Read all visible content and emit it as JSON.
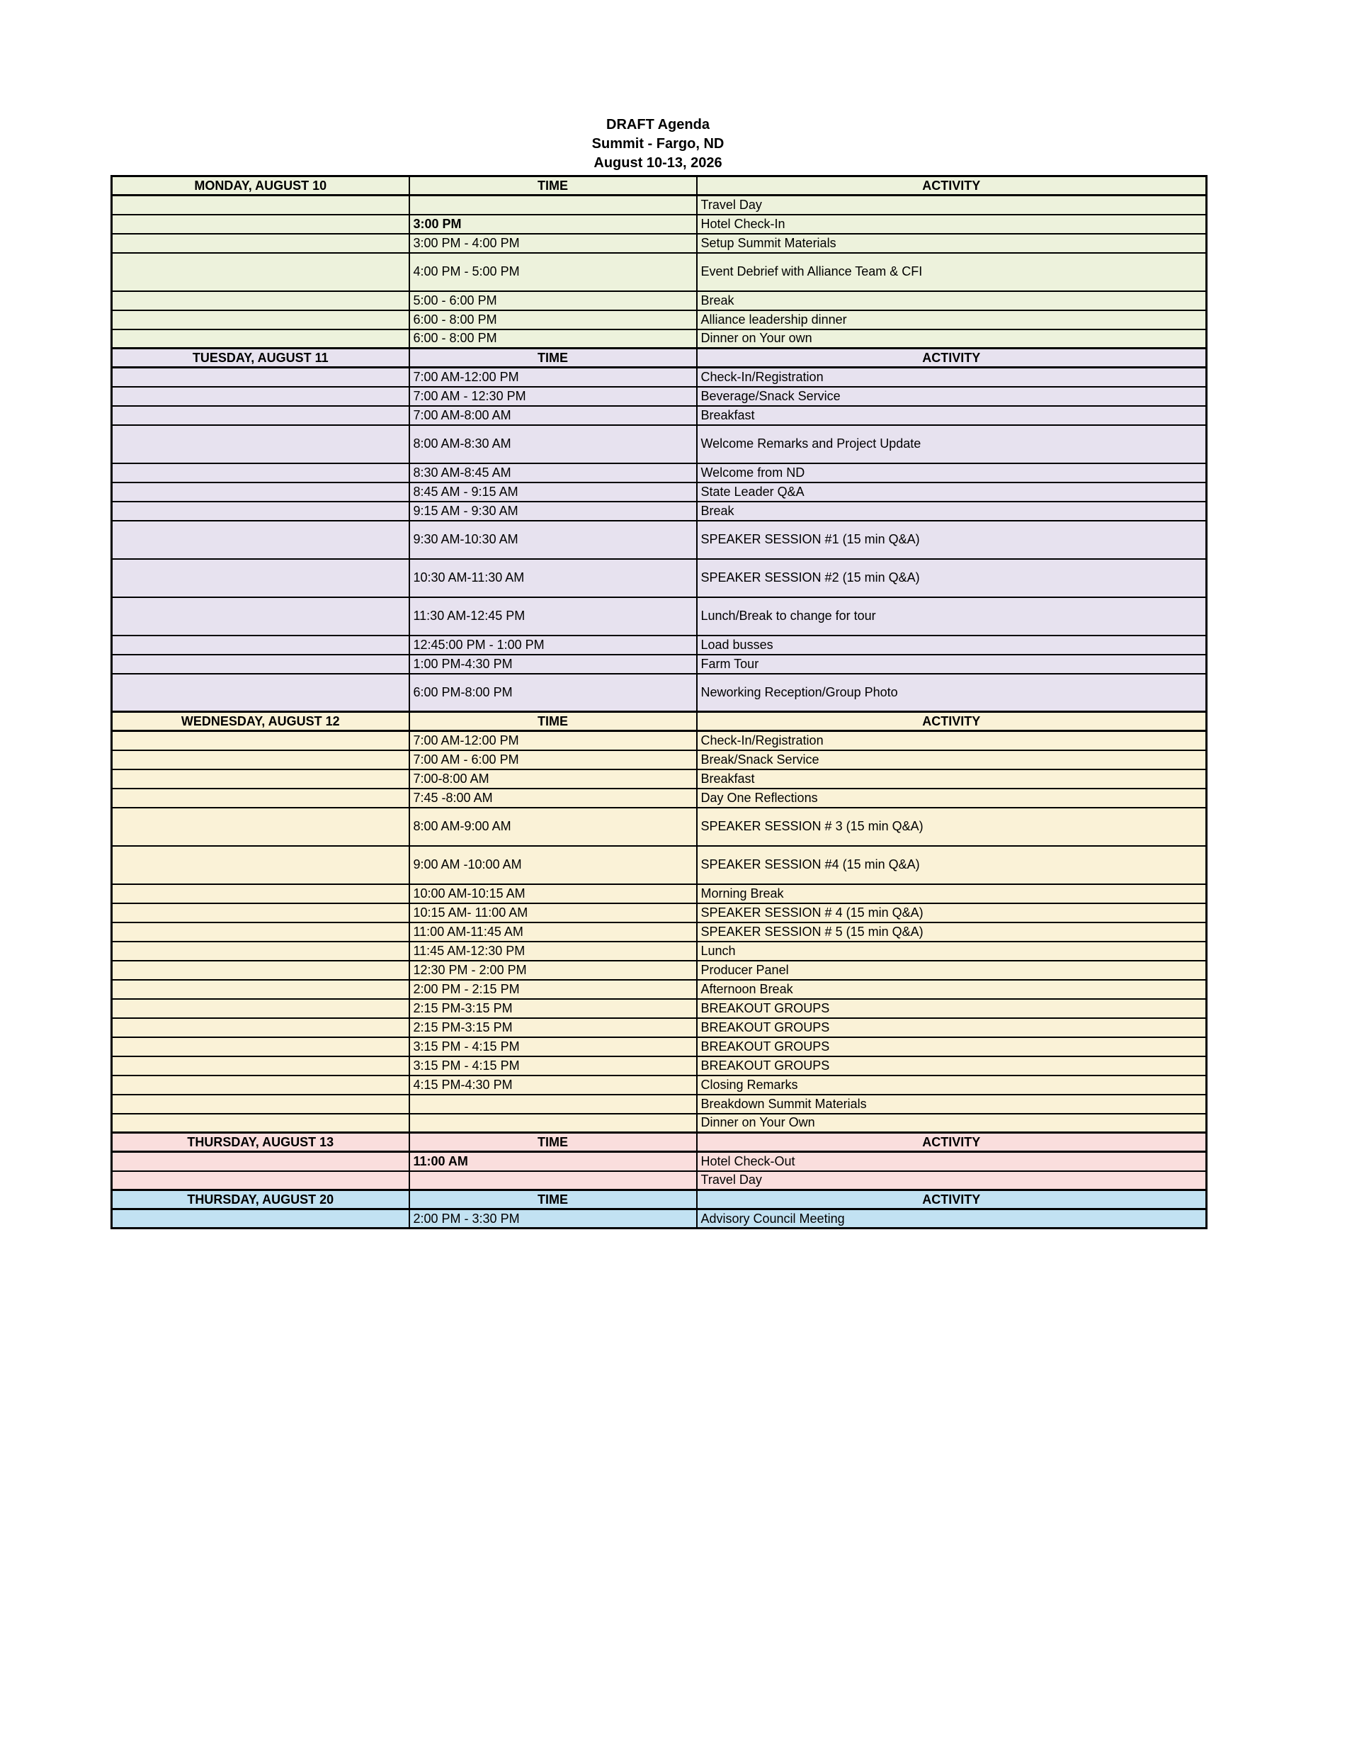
{
  "title": {
    "line1": "DRAFT Agenda",
    "line2": "Summit - Fargo, ND",
    "line3": "August 10-13, 2026"
  },
  "columns": {
    "time": "TIME",
    "activity": "ACTIVITY"
  },
  "section_colors": {
    "monday": "#edf2dc",
    "tuesday": "#e7e2ef",
    "wednesday": "#faf2d7",
    "thursday13": "#fadedd",
    "thursday20": "#c2e2f2"
  },
  "sections": [
    {
      "day": "MONDAY, AUGUST 10",
      "color": "#edf2dc",
      "rows": [
        {
          "time": "",
          "activity": "Travel Day"
        },
        {
          "time": "3:00 PM",
          "time_bold": true,
          "activity": "Hotel Check-In"
        },
        {
          "time": "3:00 PM - 4:00 PM",
          "activity": "Setup Summit Materials"
        },
        {
          "time": "4:00 PM - 5:00 PM",
          "activity": "Event Debrief with Alliance Team & CFI",
          "tall": true
        },
        {
          "time": "5:00 - 6:00 PM",
          "activity": "Break"
        },
        {
          "time": "6:00 - 8:00 PM",
          "activity": "Alliance leadership dinner"
        },
        {
          "time": "6:00 - 8:00 PM",
          "activity": "Dinner on Your own"
        }
      ]
    },
    {
      "day": "TUESDAY, AUGUST 11",
      "color": "#e7e2ef",
      "rows": [
        {
          "time": "7:00 AM-12:00 PM",
          "activity": "Check-In/Registration"
        },
        {
          "time": "7:00 AM - 12:30 PM",
          "activity": "Beverage/Snack Service"
        },
        {
          "time": "7:00 AM-8:00 AM",
          "activity": "Breakfast"
        },
        {
          "time": "8:00 AM-8:30 AM",
          "activity": "Welcome Remarks and Project Update",
          "tall": true
        },
        {
          "time": "8:30 AM-8:45 AM",
          "activity": "Welcome from ND"
        },
        {
          "time": "8:45 AM - 9:15 AM",
          "activity": "State Leader Q&A"
        },
        {
          "time": "9:15 AM - 9:30 AM",
          "activity": "Break"
        },
        {
          "time": "9:30 AM-10:30 AM",
          "activity": "SPEAKER SESSION #1 (15 min Q&A)",
          "tall": true
        },
        {
          "time": "10:30 AM-11:30 AM",
          "activity": "SPEAKER SESSION #2 (15 min Q&A)",
          "tall": true
        },
        {
          "time": "11:30 AM-12:45 PM",
          "activity": "Lunch/Break to change for tour",
          "tall": true
        },
        {
          "time": "12:45:00 PM - 1:00 PM",
          "activity": "Load busses"
        },
        {
          "time": "1:00 PM-4:30 PM",
          "activity": "Farm Tour"
        },
        {
          "time": "6:00 PM-8:00 PM",
          "activity": "Neworking Reception/Group Photo",
          "tall": true
        }
      ]
    },
    {
      "day": "WEDNESDAY, AUGUST 12",
      "color": "#faf2d7",
      "rows": [
        {
          "time": "7:00 AM-12:00 PM",
          "activity": "Check-In/Registration"
        },
        {
          "time": "7:00 AM - 6:00 PM",
          "activity": "Break/Snack Service"
        },
        {
          "time": "7:00-8:00 AM",
          "activity": "Breakfast"
        },
        {
          "time": "7:45 -8:00 AM",
          "activity": "Day One Reflections"
        },
        {
          "time": "8:00 AM-9:00 AM",
          "activity": "SPEAKER SESSION # 3 (15 min Q&A)",
          "tall": true
        },
        {
          "time": "9:00 AM -10:00 AM",
          "activity": "SPEAKER SESSION #4 (15 min Q&A)",
          "tall": true
        },
        {
          "time": "10:00 AM-10:15 AM",
          "activity": "Morning Break"
        },
        {
          "time": "10:15 AM- 11:00 AM",
          "activity": "SPEAKER SESSION # 4 (15 min Q&A)"
        },
        {
          "time": "11:00 AM-11:45 AM",
          "activity": "SPEAKER SESSION # 5 (15 min Q&A)"
        },
        {
          "time": "11:45 AM-12:30 PM",
          "activity": "Lunch"
        },
        {
          "time": "12:30 PM - 2:00 PM",
          "activity": "Producer Panel"
        },
        {
          "time": "2:00 PM - 2:15 PM",
          "activity": "Afternoon Break"
        },
        {
          "time": "2:15 PM-3:15 PM",
          "activity": "BREAKOUT GROUPS"
        },
        {
          "time": "2:15 PM-3:15 PM",
          "activity": "BREAKOUT GROUPS"
        },
        {
          "time": "3:15 PM - 4:15 PM",
          "activity": "BREAKOUT GROUPS"
        },
        {
          "time": "3:15 PM - 4:15 PM",
          "activity": "BREAKOUT GROUPS"
        },
        {
          "time": "4:15 PM-4:30 PM",
          "activity": "Closing Remarks"
        },
        {
          "time": "",
          "activity": "Breakdown Summit Materials"
        },
        {
          "time": "",
          "activity": "Dinner on Your Own"
        }
      ]
    },
    {
      "day": "THURSDAY, AUGUST 13",
      "color": "#fadedd",
      "rows": [
        {
          "time": "11:00 AM",
          "time_bold": true,
          "activity": "Hotel Check-Out"
        },
        {
          "time": "",
          "activity": "Travel Day"
        }
      ]
    },
    {
      "day": "THURSDAY, AUGUST 20",
      "color": "#c2e2f2",
      "rows": [
        {
          "time": "2:00 PM - 3:30 PM",
          "activity": "Advisory Council Meeting"
        }
      ]
    }
  ]
}
